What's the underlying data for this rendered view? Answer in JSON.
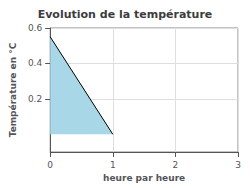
{
  "chart_data": {
    "type": "line",
    "title": "Evolution de la température",
    "xlabel": "heure par heure",
    "ylabel": "Température en °C",
    "x": [
      0,
      1
    ],
    "series": [
      {
        "type": "area",
        "color": "#a8d8e8",
        "values": [
          0.55,
          0.0
        ]
      },
      {
        "type": "line",
        "color": "#000000",
        "values": [
          0.55,
          0.0
        ]
      }
    ],
    "xlim": [
      0,
      3
    ],
    "xticks": [
      0,
      1,
      2,
      3
    ],
    "ylim": [
      -0.1,
      0.6
    ],
    "yticks": [
      0.2,
      0.4,
      0.6
    ],
    "grid": true
  }
}
